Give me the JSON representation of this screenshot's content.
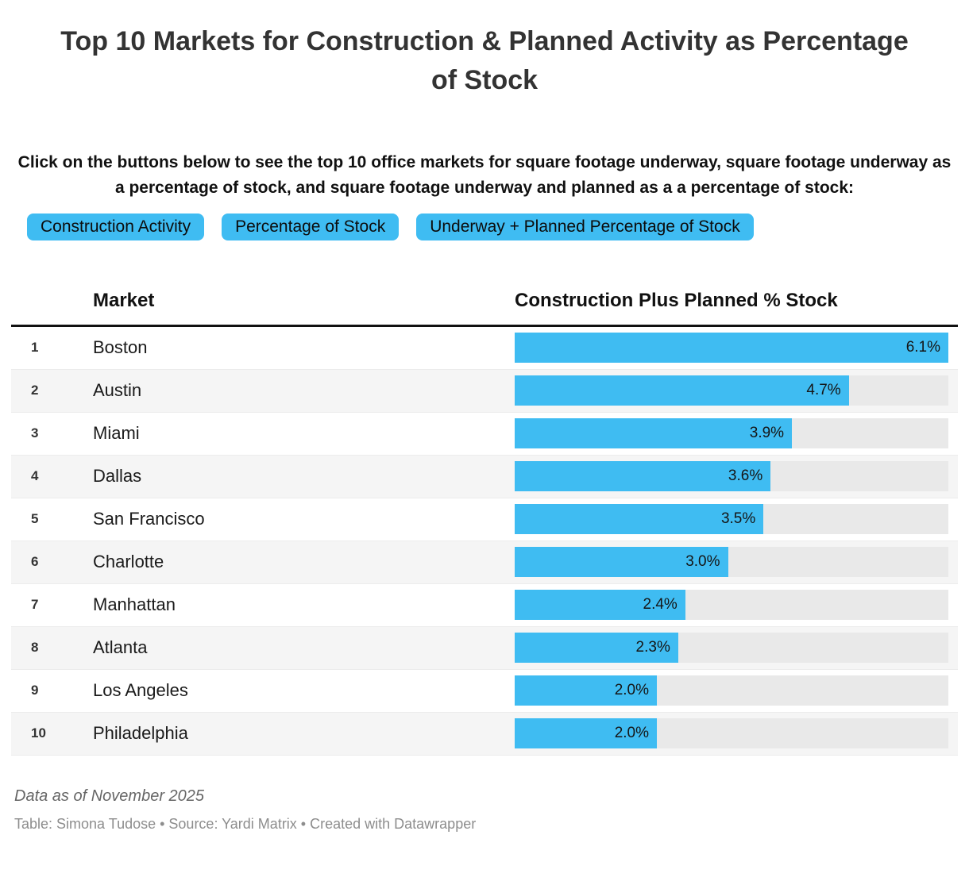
{
  "header": {
    "title": "Top 10 Markets for Construction & Planned Activity as Percentage of Stock",
    "description": "Click on the buttons below to see the top 10 office markets for square footage underway, square footage underway as a percentage of stock, and square footage underway and planned as a a percentage of stock:"
  },
  "buttons": [
    {
      "label": "Construction Activity"
    },
    {
      "label": "Percentage of Stock"
    },
    {
      "label": "Underway + Planned Percentage of Stock"
    }
  ],
  "colors": {
    "accent": "#3fbcf2",
    "bar_track": "#e9e9e9",
    "row_alt": "#f5f5f5"
  },
  "table": {
    "columns": [
      "Market",
      "Construction Plus Planned % Stock"
    ],
    "rows": [
      {
        "rank": "1",
        "market": "Boston",
        "value": 6.1,
        "label": "6.1%"
      },
      {
        "rank": "2",
        "market": "Austin",
        "value": 4.7,
        "label": "4.7%"
      },
      {
        "rank": "3",
        "market": "Miami",
        "value": 3.9,
        "label": "3.9%"
      },
      {
        "rank": "4",
        "market": "Dallas",
        "value": 3.6,
        "label": "3.6%"
      },
      {
        "rank": "5",
        "market": "San Francisco",
        "value": 3.5,
        "label": "3.5%"
      },
      {
        "rank": "6",
        "market": "Charlotte",
        "value": 3.0,
        "label": "3.0%"
      },
      {
        "rank": "7",
        "market": "Manhattan",
        "value": 2.4,
        "label": "2.4%"
      },
      {
        "rank": "8",
        "market": "Atlanta",
        "value": 2.3,
        "label": "2.3%"
      },
      {
        "rank": "9",
        "market": "Los Angeles",
        "value": 2.0,
        "label": "2.0%"
      },
      {
        "rank": "10",
        "market": "Philadelphia",
        "value": 2.0,
        "label": "2.0%"
      }
    ]
  },
  "footer": {
    "note": "Data as of November 2025",
    "credits": "Table: Simona Tudose • Source: Yardi Matrix • Created with Datawrapper"
  },
  "chart_data": {
    "type": "bar",
    "categories": [
      "Boston",
      "Austin",
      "Miami",
      "Dallas",
      "San Francisco",
      "Charlotte",
      "Manhattan",
      "Atlanta",
      "Los Angeles",
      "Philadelphia"
    ],
    "values": [
      6.1,
      4.7,
      3.9,
      3.6,
      3.5,
      3.0,
      2.4,
      2.3,
      2.0,
      2.0
    ],
    "title": "Top 10 Markets for Construction & Planned Activity as Percentage of Stock",
    "xlabel": "Construction Plus Planned % Stock",
    "ylabel": "Market",
    "xlim": [
      0,
      6.1
    ],
    "grid": false,
    "legend": false,
    "orientation": "horizontal"
  }
}
